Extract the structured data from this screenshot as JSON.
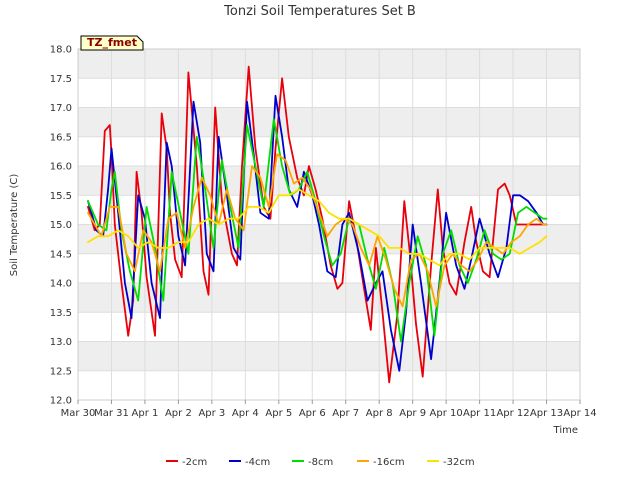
{
  "chart_data": {
    "type": "line",
    "title": "Tonzi Soil Temperatures Set B",
    "xlabel": "Time",
    "ylabel": "Soil Temperature (C)",
    "badge": "TZ_fmet",
    "xlim": [
      0,
      15
    ],
    "ylim": [
      12.0,
      18.0
    ],
    "y_ticks": [
      "12.0",
      "12.5",
      "13.0",
      "13.5",
      "14.0",
      "14.5",
      "15.0",
      "15.5",
      "16.0",
      "16.5",
      "17.0",
      "17.5",
      "18.0"
    ],
    "x_ticks": [
      "Mar 30",
      "Mar 31",
      "Apr 1",
      "Apr 2",
      "Apr 3",
      "Apr 4",
      "Apr 5",
      "Apr 6",
      "Apr 7",
      "Apr 8",
      "Apr 9",
      "Apr 10",
      "Apr 11",
      "Apr 12",
      "Apr 13",
      "Apr 14"
    ],
    "grid": true,
    "legend_position": "bottom",
    "series": [
      {
        "name": "-2cm",
        "color": "#e8000b",
        "x": [
          0.3,
          0.5,
          0.65,
          0.8,
          0.95,
          1.0,
          1.1,
          1.3,
          1.5,
          1.65,
          1.75,
          1.9,
          2.05,
          2.3,
          2.5,
          2.65,
          2.75,
          2.9,
          3.1,
          3.3,
          3.55,
          3.75,
          3.9,
          4.1,
          4.3,
          4.6,
          4.75,
          4.9,
          5.1,
          5.3,
          5.55,
          5.75,
          5.9,
          6.1,
          6.3,
          6.55,
          6.75,
          6.9,
          7.1,
          7.3,
          7.55,
          7.75,
          7.9,
          8.1,
          8.3,
          8.55,
          8.75,
          8.9,
          9.1,
          9.3,
          9.55,
          9.75,
          9.9,
          10.1,
          10.3,
          10.55,
          10.75,
          10.9,
          11.1,
          11.3,
          11.55,
          11.75,
          11.9,
          12.1,
          12.3,
          12.55,
          12.75,
          12.9,
          13.1,
          13.3,
          13.55,
          13.75,
          13.9,
          14.0
        ],
        "y": [
          15.3,
          14.9,
          15.0,
          16.6,
          16.7,
          16.2,
          15.0,
          14.0,
          13.1,
          13.7,
          15.9,
          15.2,
          14.1,
          13.1,
          16.9,
          16.3,
          15.2,
          14.4,
          14.1,
          17.6,
          16.0,
          14.2,
          13.8,
          17.0,
          15.4,
          14.5,
          14.3,
          16.0,
          17.7,
          16.3,
          15.3,
          15.1,
          16.3,
          17.5,
          16.5,
          15.8,
          15.5,
          16.0,
          15.6,
          15.1,
          14.3,
          13.9,
          14.0,
          15.4,
          14.8,
          13.9,
          13.2,
          14.6,
          13.5,
          12.3,
          13.5,
          15.4,
          14.6,
          13.3,
          12.4,
          14.3,
          15.6,
          14.6,
          14.0,
          13.8,
          14.7,
          15.3,
          14.7,
          14.2,
          14.1,
          15.6,
          15.7,
          15.5,
          15.0,
          15.0,
          15.0,
          15.0,
          15.0,
          15.0
        ]
      },
      {
        "name": "-4cm",
        "color": "#0000cc",
        "x": [
          0.3,
          0.55,
          0.75,
          0.9,
          1.0,
          1.2,
          1.4,
          1.6,
          1.8,
          2.0,
          2.2,
          2.45,
          2.65,
          2.8,
          3.0,
          3.2,
          3.45,
          3.65,
          3.85,
          4.05,
          4.2,
          4.45,
          4.65,
          4.85,
          5.05,
          5.25,
          5.45,
          5.7,
          5.9,
          6.1,
          6.3,
          6.55,
          6.75,
          7.0,
          7.2,
          7.45,
          7.7,
          7.9,
          8.1,
          8.4,
          8.65,
          8.9,
          9.1,
          9.35,
          9.6,
          9.8,
          10.0,
          10.25,
          10.55,
          10.8,
          11.0,
          11.3,
          11.55,
          11.75,
          12.0,
          12.3,
          12.55,
          12.8,
          13.0,
          13.2,
          13.45,
          13.7,
          13.9,
          14.0
        ],
        "y": [
          15.4,
          14.9,
          14.8,
          15.6,
          16.3,
          15.2,
          14.0,
          13.4,
          15.5,
          15.1,
          14.0,
          13.4,
          16.4,
          16.0,
          14.8,
          14.3,
          17.1,
          16.4,
          14.5,
          14.2,
          16.5,
          15.5,
          14.6,
          14.4,
          17.1,
          16.2,
          15.2,
          15.1,
          17.2,
          16.5,
          15.6,
          15.3,
          15.9,
          15.5,
          15.0,
          14.2,
          14.1,
          15.0,
          15.2,
          14.5,
          13.7,
          14.0,
          14.2,
          13.2,
          12.5,
          13.5,
          15.0,
          14.0,
          12.7,
          14.0,
          15.2,
          14.3,
          13.9,
          14.4,
          15.1,
          14.5,
          14.1,
          14.6,
          15.5,
          15.5,
          15.4,
          15.2,
          15.0,
          15.0
        ]
      },
      {
        "name": "-8cm",
        "color": "#00dd00",
        "x": [
          0.3,
          0.6,
          0.85,
          1.0,
          1.1,
          1.3,
          1.55,
          1.8,
          2.05,
          2.3,
          2.55,
          2.8,
          3.05,
          3.3,
          3.55,
          3.8,
          4.05,
          4.3,
          4.55,
          4.8,
          5.05,
          5.3,
          5.55,
          5.85,
          6.1,
          6.35,
          6.6,
          6.85,
          7.1,
          7.35,
          7.6,
          7.85,
          8.1,
          8.4,
          8.65,
          8.9,
          9.15,
          9.4,
          9.65,
          9.9,
          10.15,
          10.4,
          10.65,
          10.9,
          11.15,
          11.4,
          11.65,
          11.9,
          12.15,
          12.4,
          12.65,
          12.9,
          13.15,
          13.4,
          13.65,
          13.9,
          14.0
        ],
        "y": [
          15.4,
          15.0,
          14.9,
          15.6,
          15.9,
          14.9,
          14.2,
          13.7,
          15.3,
          14.6,
          13.7,
          15.9,
          15.2,
          14.5,
          16.5,
          15.6,
          14.6,
          16.1,
          15.3,
          14.6,
          16.7,
          16.0,
          15.3,
          16.8,
          16.0,
          15.5,
          15.6,
          15.9,
          15.4,
          14.8,
          14.3,
          14.5,
          15.1,
          15.0,
          14.4,
          13.9,
          14.6,
          14.0,
          13.0,
          14.0,
          14.8,
          14.3,
          13.1,
          14.5,
          14.9,
          14.3,
          14.0,
          14.4,
          14.9,
          14.5,
          14.4,
          14.5,
          15.2,
          15.3,
          15.2,
          15.1,
          15.1
        ]
      },
      {
        "name": "-16cm",
        "color": "#ffa500",
        "x": [
          0.3,
          0.7,
          0.95,
          1.2,
          1.45,
          1.7,
          1.95,
          2.2,
          2.45,
          2.7,
          2.95,
          3.2,
          3.45,
          3.7,
          3.95,
          4.2,
          4.45,
          4.7,
          4.95,
          5.2,
          5.45,
          5.7,
          5.95,
          6.2,
          6.45,
          6.7,
          6.95,
          7.2,
          7.45,
          7.7,
          7.95,
          8.2,
          8.45,
          8.7,
          8.95,
          9.2,
          9.45,
          9.7,
          9.95,
          10.2,
          10.45,
          10.7,
          10.95,
          11.2,
          11.45,
          11.7,
          11.95,
          12.2,
          12.45,
          12.7,
          12.95,
          13.2,
          13.45,
          13.7,
          13.9,
          14.0
        ],
        "y": [
          15.2,
          14.8,
          15.3,
          15.3,
          14.5,
          14.2,
          14.9,
          14.7,
          14.2,
          15.1,
          15.2,
          14.6,
          15.3,
          15.8,
          15.5,
          15.0,
          15.6,
          15.1,
          14.9,
          16.0,
          15.8,
          15.3,
          16.2,
          16.1,
          15.7,
          15.8,
          15.6,
          15.2,
          14.8,
          15.0,
          15.1,
          15.0,
          14.6,
          14.3,
          14.8,
          14.4,
          13.9,
          13.6,
          14.4,
          14.5,
          14.2,
          13.6,
          14.3,
          14.5,
          14.3,
          14.2,
          14.4,
          14.7,
          14.6,
          14.5,
          14.7,
          14.8,
          15.0,
          15.1,
          15.0,
          15.0
        ]
      },
      {
        "name": "-32cm",
        "color": "#ffe100",
        "x": [
          0.3,
          0.6,
          0.9,
          1.2,
          1.5,
          1.8,
          2.1,
          2.4,
          2.7,
          3.0,
          3.3,
          3.6,
          3.9,
          4.2,
          4.5,
          4.8,
          5.1,
          5.4,
          5.7,
          6.0,
          6.3,
          6.6,
          6.9,
          7.2,
          7.5,
          7.8,
          8.1,
          8.4,
          8.7,
          9.0,
          9.3,
          9.6,
          9.9,
          10.2,
          10.5,
          10.8,
          11.1,
          11.4,
          11.7,
          12.0,
          12.3,
          12.6,
          12.9,
          13.2,
          13.5,
          13.8,
          14.0
        ],
        "y": [
          14.7,
          14.8,
          14.8,
          14.9,
          14.8,
          14.6,
          14.7,
          14.6,
          14.6,
          14.7,
          14.7,
          15.0,
          15.1,
          15.0,
          15.1,
          15.1,
          15.3,
          15.3,
          15.2,
          15.5,
          15.5,
          15.6,
          15.5,
          15.4,
          15.2,
          15.1,
          15.1,
          15.0,
          14.9,
          14.8,
          14.6,
          14.6,
          14.5,
          14.5,
          14.4,
          14.3,
          14.5,
          14.5,
          14.4,
          14.6,
          14.6,
          14.6,
          14.6,
          14.5,
          14.6,
          14.7,
          14.8
        ]
      }
    ]
  }
}
